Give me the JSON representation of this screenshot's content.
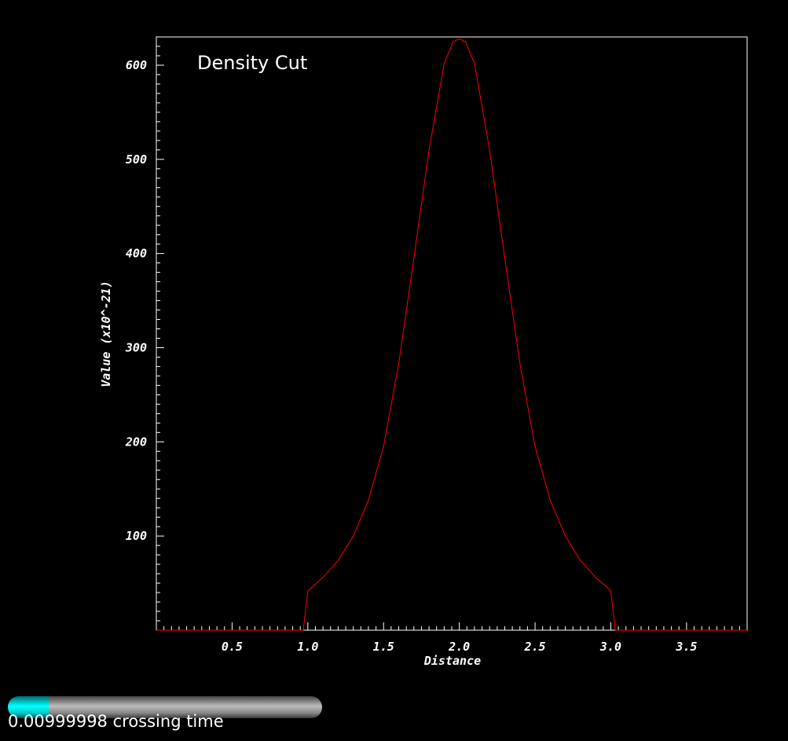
{
  "chart_data": {
    "type": "line",
    "title": "Density Cut",
    "xlabel": "Distance",
    "ylabel": "Value (x10^-21)",
    "xlim": [
      0.0,
      3.9
    ],
    "ylim": [
      0,
      630
    ],
    "x_ticks": [
      0.5,
      1.0,
      1.5,
      2.0,
      2.5,
      3.0,
      3.5
    ],
    "x_tick_labels": [
      "0.5",
      "1.0",
      "1.5",
      "2.0",
      "2.5",
      "3.0",
      "3.5"
    ],
    "y_ticks": [
      100,
      200,
      300,
      400,
      500,
      600
    ],
    "y_tick_labels": [
      "100",
      "200",
      "300",
      "400",
      "500",
      "600"
    ],
    "grid": false,
    "line_color": "#ff0000",
    "series": [
      {
        "x": [
          0.0,
          0.97,
          1.0,
          1.1,
          1.2,
          1.3,
          1.4,
          1.5,
          1.6,
          1.7,
          1.8,
          1.9,
          1.96,
          2.0,
          2.04,
          2.1,
          2.2,
          2.3,
          2.4,
          2.5,
          2.6,
          2.7,
          2.8,
          2.9,
          3.0,
          3.03,
          3.9
        ],
        "y": [
          0,
          0,
          42,
          56,
          74,
          100,
          138,
          195,
          283,
          395,
          510,
          602,
          625,
          628,
          625,
          602,
          510,
          395,
          283,
          195,
          138,
          100,
          74,
          56,
          42,
          0,
          0
        ]
      }
    ]
  },
  "progress": {
    "fraction": 0.13,
    "label": "0.00999998 crossing time"
  },
  "colors": {
    "background": "#000000",
    "axes": "#ffffff",
    "progress_fill": "#00ffff",
    "progress_track": "#a0a0a0"
  }
}
